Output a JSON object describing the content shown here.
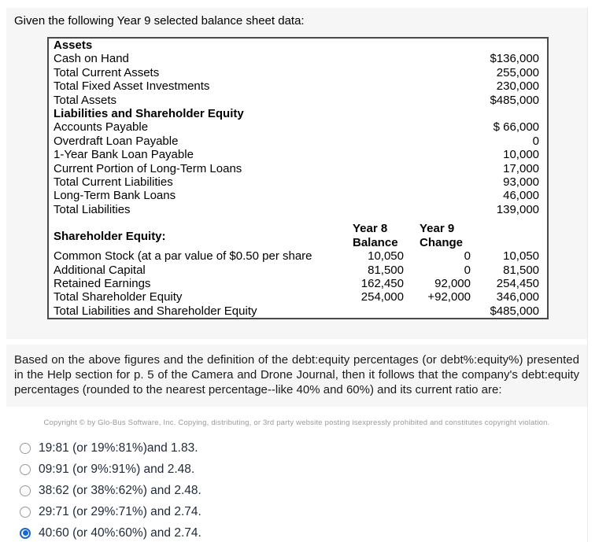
{
  "colors": {
    "panel_bg": "#f6f6f6",
    "table_border": "#4a4a4a",
    "radio_selected_blue": "#1868d1",
    "option_text": "#212b3a",
    "copyright_gray": "#9a9a9a"
  },
  "question": {
    "intro": "Given the following Year 9 selected balance sheet data:",
    "body": "Based on the above figures and the definition of the debt:equity percentages (or debt%:equity%) presented in the Help section for p. 5 of the Camera and Drone Journal, then it follows that the company's debt:equity percentages (rounded to the nearest percentage--like 40% and 60%) and its current ratio are:"
  },
  "balance_sheet": {
    "column_headers": {
      "year8": [
        "Year 8",
        "Balance"
      ],
      "year9": [
        "Year 9",
        "Change"
      ]
    },
    "rows": [
      {
        "style": "section",
        "label": "Assets"
      },
      {
        "label": "Cash on Hand",
        "value": "$136,000"
      },
      {
        "label": "Total Current Assets",
        "value": "255,000"
      },
      {
        "label": "Total Fixed Asset Investments",
        "value": "230,000"
      },
      {
        "label": "Total Assets",
        "value": "$485,000"
      },
      {
        "style": "section",
        "label": "Liabilities and Shareholder Equity"
      },
      {
        "label": "Accounts Payable",
        "value": "$ 66,000"
      },
      {
        "label": "Overdraft Loan Payable",
        "value": "0"
      },
      {
        "label": "1-Year Bank Loan Payable",
        "value": "10,000"
      },
      {
        "label": "Current Portion of Long-Term Loans",
        "value": "17,000"
      },
      {
        "label": "Total Current Liabilities",
        "value": "93,000"
      },
      {
        "label": "Long-Term Bank Loans",
        "value": "46,000"
      },
      {
        "label": "Total Liabilities",
        "value": "139,000"
      },
      {
        "style": "equity-header",
        "label": "Shareholder Equity:"
      },
      {
        "label": "Common Stock (at a par value of $0.50 per share",
        "year8": "10,050",
        "change": "0",
        "value": "10,050"
      },
      {
        "label": "Additional Capital",
        "year8": "81,500",
        "change": "0",
        "value": "81,500"
      },
      {
        "label": "Retained Earnings",
        "year8": "162,450",
        "change": "92,000",
        "value": "254,450"
      },
      {
        "label": "Total Shareholder Equity",
        "year8": "254,000",
        "change": "+92,000",
        "value": "346,000"
      },
      {
        "label": "Total Liabilities and Shareholder Equity",
        "value": "$485,000"
      }
    ]
  },
  "copyright": "Copyright © by Glo-Bus Software, Inc. Copying, distributing, or 3rd party website posting isexpressly prohibited and constitutes copyright violation.",
  "options": [
    {
      "label": "19:81 (or 19%:81%)and 1.83.",
      "selected": false
    },
    {
      "label": "09:91 (or 9%:91%) and 2.48.",
      "selected": false
    },
    {
      "label": "38:62 (or 38%:62%) and 2.48.",
      "selected": false
    },
    {
      "label": "29:71 (or 29%:71%) and 2.74.",
      "selected": false
    },
    {
      "label": "40:60 (or 40%:60%) and 2.74.",
      "selected": true
    }
  ]
}
